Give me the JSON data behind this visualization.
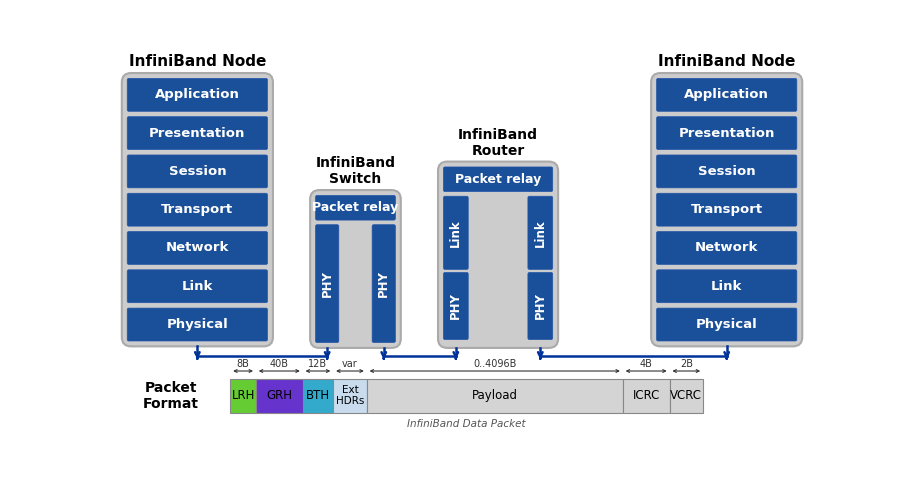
{
  "bg_color": "#ffffff",
  "node_bg": "#cccccc",
  "layer_blue": "#1a4f99",
  "layer_blue_dark": "#1a3f7a",
  "layer_labels": [
    "Application",
    "Presentation",
    "Session",
    "Transport",
    "Network",
    "Link",
    "Physical"
  ],
  "packet_labels": [
    "LRH",
    "GRH",
    "BTH",
    "Ext\nHDRs",
    "Payload",
    "ICRC",
    "VCRC"
  ],
  "packet_colors": [
    "#66cc33",
    "#6633cc",
    "#33aacc",
    "#c8dced",
    "#d4d4d4",
    "#d4d4d4",
    "#d4d4d4"
  ],
  "packet_sizes": [
    "8B",
    "40B",
    "12B",
    "var",
    "0..4096B",
    "4B",
    "2B"
  ],
  "title_left": "InfiniBand Node",
  "title_right": "InfiniBand Node",
  "title_switch": "InfiniBand\nSwitch",
  "title_router": "InfiniBand\nRouter",
  "packet_format_label": "Packet\nFormat",
  "infiniband_data_packet": "InfiniBand Data Packet",
  "arrow_color": "#003399",
  "seg_props": [
    0.052,
    0.095,
    0.062,
    0.068,
    0.52,
    0.095,
    0.068
  ]
}
